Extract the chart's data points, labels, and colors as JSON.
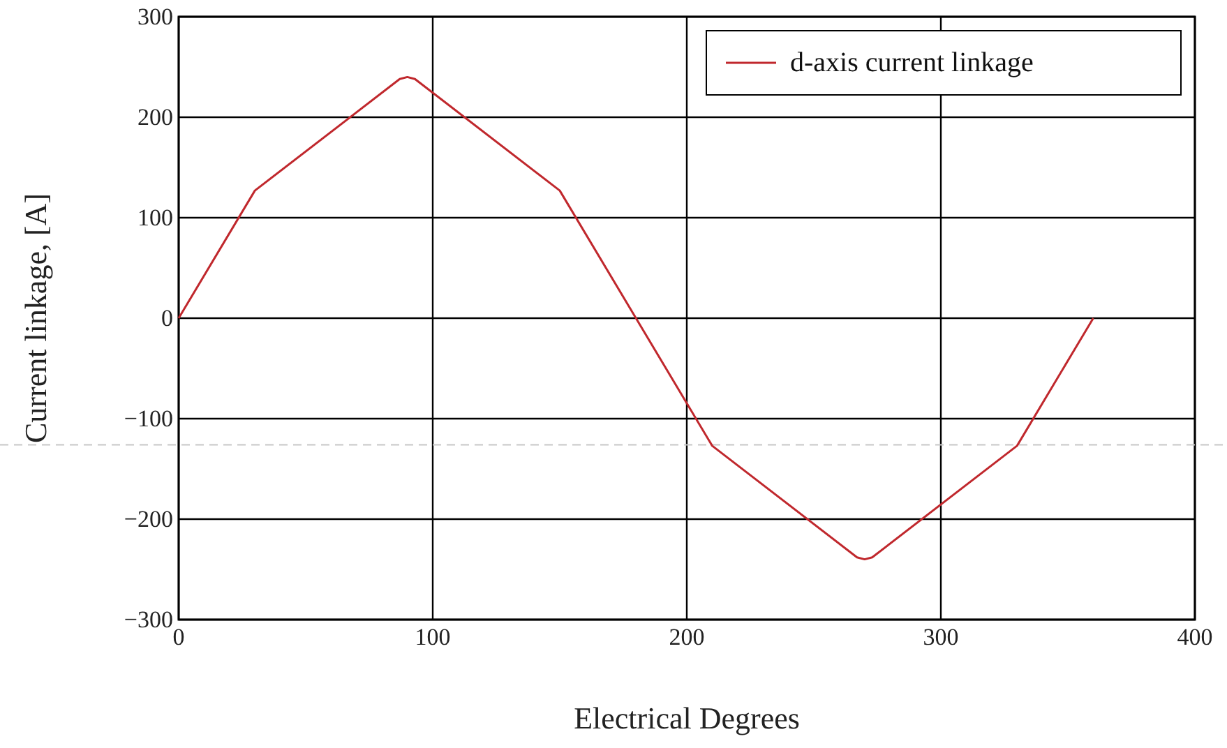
{
  "chart_data": {
    "type": "line",
    "xlabel": "Electrical Degrees",
    "ylabel": "Current linkage, [A]",
    "xlim": [
      0,
      400
    ],
    "xticks": [
      0,
      100,
      200,
      300,
      400
    ],
    "ylim": [
      -300,
      300
    ],
    "yticks": [
      {
        "value": -300,
        "label": "−300"
      },
      {
        "value": -200,
        "label": "−200"
      },
      {
        "value": -100,
        "label": "−100"
      },
      0,
      100,
      200,
      300
    ],
    "grid": true,
    "legend": "top right",
    "line_style": "solid",
    "ref_lines": [
      {
        "axis": "y",
        "value": -126,
        "color": "#c8c8c8",
        "line_style": "dashed"
      }
    ],
    "series": [
      {
        "name": "d-axis current linkage",
        "color": "#c0282d",
        "x": [
          0,
          30,
          87,
          90,
          93,
          150,
          180,
          210,
          267,
          270,
          273,
          330,
          360
        ],
        "values": [
          0,
          127,
          238,
          240,
          238,
          127,
          0,
          -127,
          -238,
          -240,
          -238,
          -127,
          0
        ]
      }
    ]
  }
}
